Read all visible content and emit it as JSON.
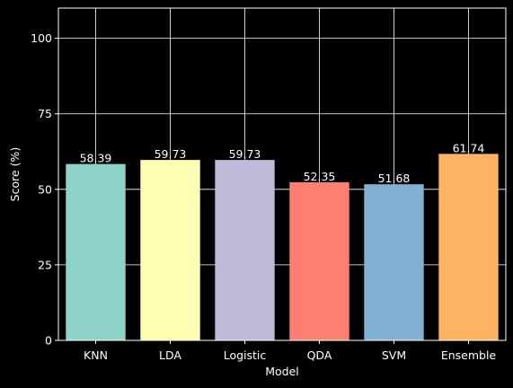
{
  "chart_data": {
    "type": "bar",
    "categories": [
      "KNN",
      "LDA",
      "Logistic",
      "QDA",
      "SVM",
      "Ensemble"
    ],
    "values": [
      58.39,
      59.73,
      59.73,
      52.35,
      51.68,
      61.74
    ],
    "value_labels": [
      "58.39",
      "59.73",
      "59.73",
      "52.35",
      "51.68",
      "61.74"
    ],
    "colors": [
      "#8dd3c7",
      "#ffffb3",
      "#bebada",
      "#fb8072",
      "#80b1d3",
      "#fdb462"
    ],
    "xlabel": "Model",
    "ylabel": "Score (%)",
    "ylim": [
      0,
      110
    ],
    "yticks": [
      0,
      25,
      50,
      75,
      100
    ],
    "ytick_labels": [
      "0",
      "25",
      "50",
      "75",
      "100"
    ],
    "grid": true,
    "background": "#000000",
    "foreground": "#ffffff"
  }
}
